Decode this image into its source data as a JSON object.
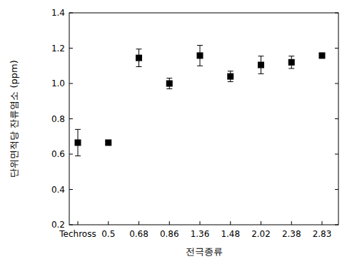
{
  "chart_data": {
    "type": "scatter",
    "x_label": "전극종류",
    "y_label": "단위면적당 잔류염소 (ppm)",
    "categories": [
      "Techross",
      "0.5",
      "0.68",
      "0.86",
      "1.36",
      "1.48",
      "2.02",
      "2.38",
      "2.83"
    ],
    "values": [
      0.665,
      0.665,
      1.145,
      1.0,
      1.158,
      1.04,
      1.105,
      1.12,
      1.158
    ],
    "errors": [
      0.075,
      0.01,
      0.05,
      0.03,
      0.058,
      0.03,
      0.05,
      0.035,
      0.01
    ],
    "ylim": [
      0.2,
      1.4
    ],
    "yticks": [
      0.2,
      0.4,
      0.6,
      0.8,
      {
        "value": 1,
        "label": "1.0"
      },
      1.2,
      1.4
    ],
    "marker": "square",
    "color": "#000000",
    "grid": false
  }
}
